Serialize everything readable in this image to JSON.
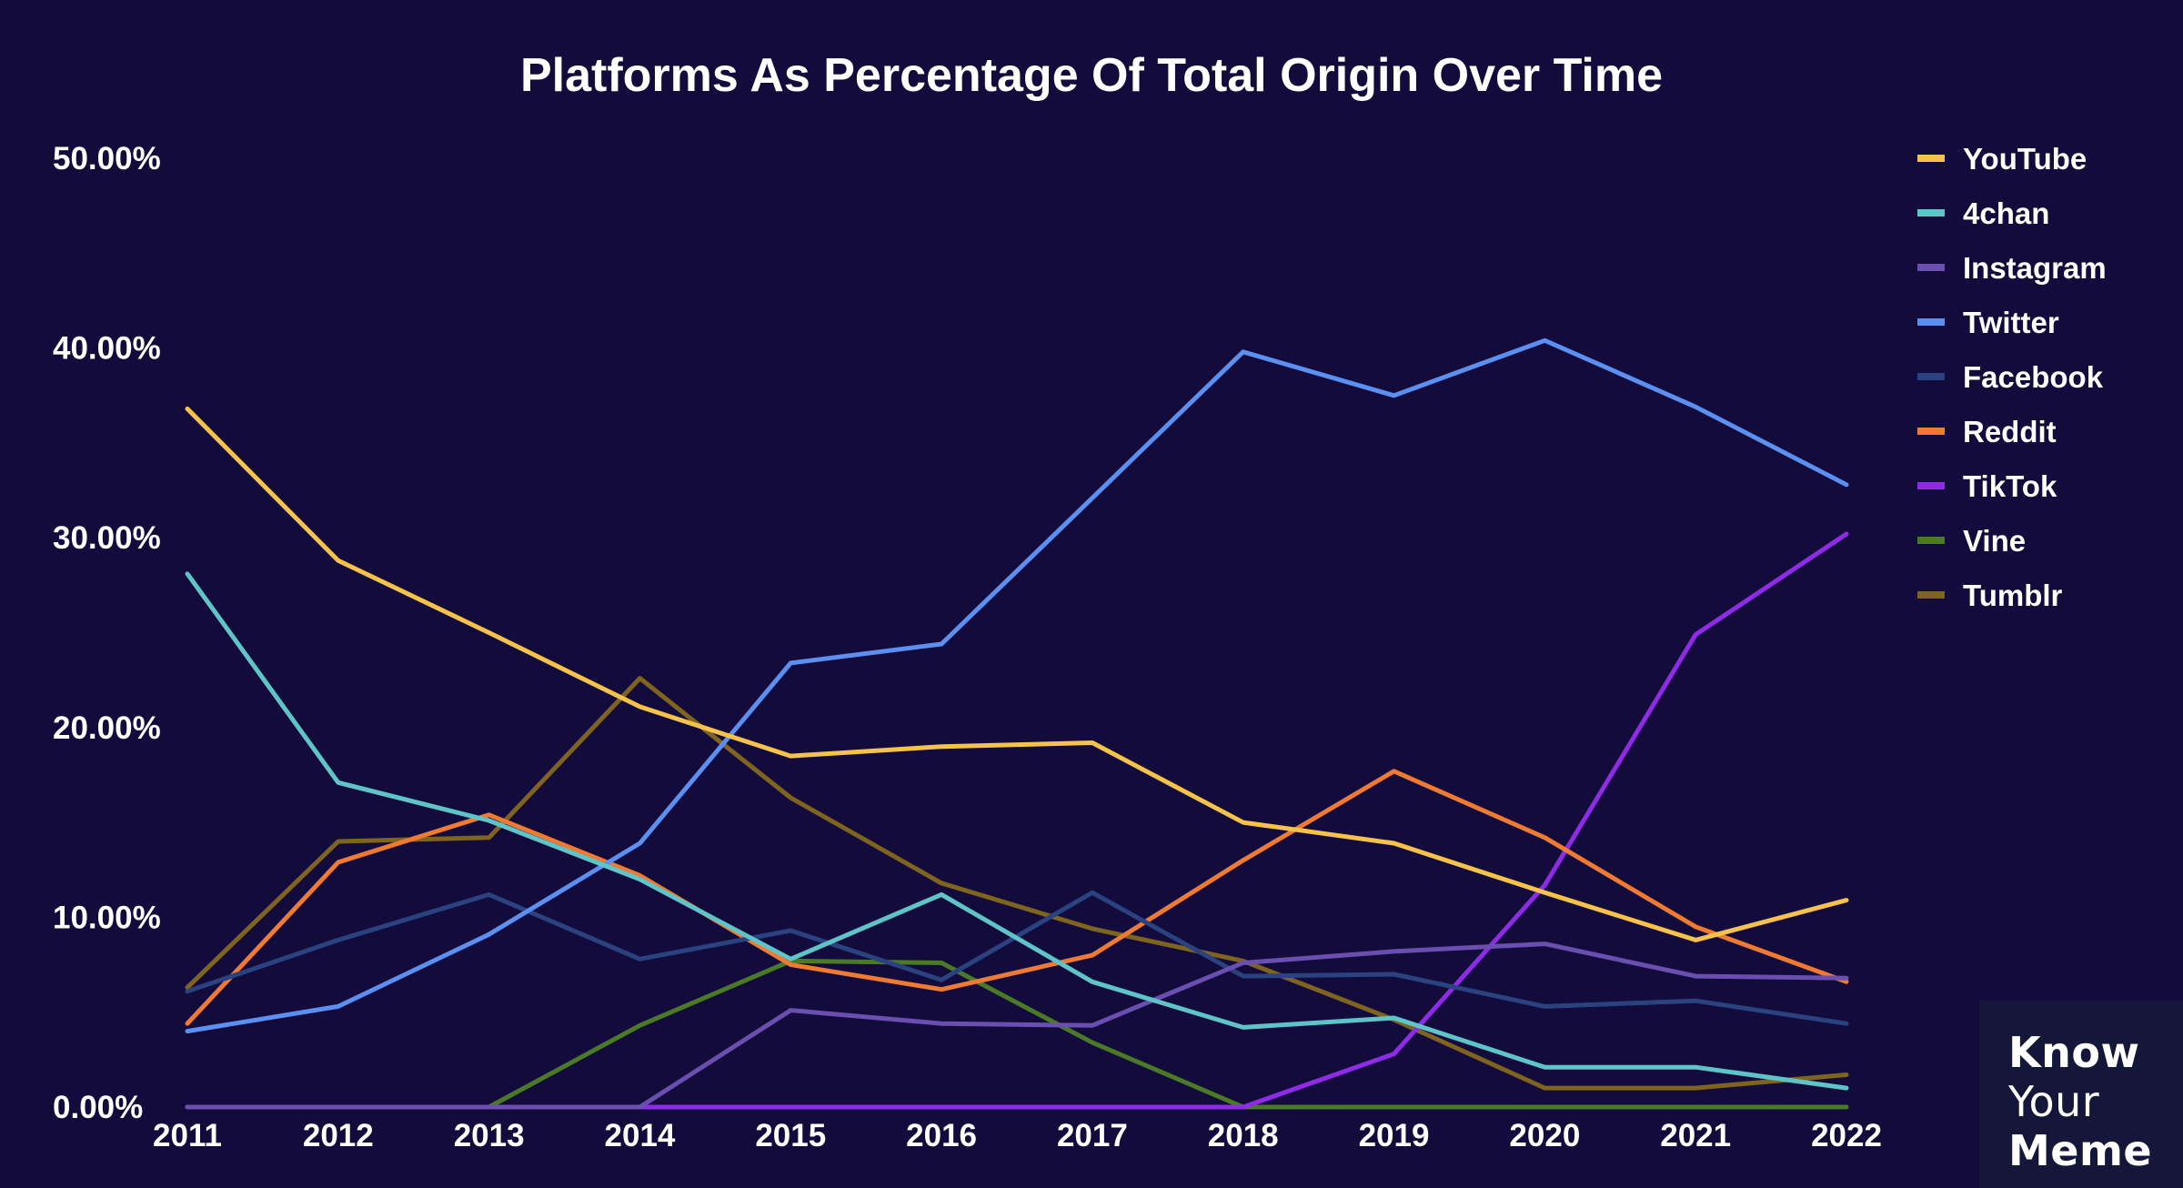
{
  "chart_data": {
    "type": "line",
    "title": "Platforms As Percentage Of Total Origin Over Time",
    "xlabel": "",
    "ylabel": "",
    "ylim": [
      0,
      50
    ],
    "yticks": [
      0,
      10,
      20,
      30,
      40,
      50
    ],
    "ytick_labels": [
      "0.00%",
      "10.00%",
      "20.00%",
      "30.00%",
      "40.00%",
      "50.00%"
    ],
    "categories": [
      "2011",
      "2012",
      "2013",
      "2014",
      "2015",
      "2016",
      "2017",
      "2018",
      "2019",
      "2020",
      "2021",
      "2022"
    ],
    "legend_position": "right",
    "series": [
      {
        "name": "YouTube",
        "color": "#f5c24c",
        "values": [
          36.8,
          28.8,
          25.0,
          21.1,
          18.5,
          19.0,
          19.2,
          15.0,
          13.9,
          11.3,
          8.8,
          10.9
        ]
      },
      {
        "name": "4chan",
        "color": "#5fc4c8",
        "values": [
          28.1,
          17.1,
          15.1,
          12.0,
          7.8,
          11.2,
          6.6,
          4.2,
          4.7,
          2.1,
          2.1,
          1.0
        ]
      },
      {
        "name": "Instagram",
        "color": "#6a4fb0",
        "values": [
          0.0,
          0.0,
          0.0,
          0.0,
          5.1,
          4.4,
          4.3,
          7.6,
          8.2,
          8.6,
          6.9,
          6.8
        ]
      },
      {
        "name": "Twitter",
        "color": "#5b8ff0",
        "values": [
          4.0,
          5.3,
          9.1,
          13.9,
          23.4,
          24.4,
          32.1,
          39.8,
          37.5,
          40.4,
          36.9,
          32.8
        ]
      },
      {
        "name": "Facebook",
        "color": "#2a4380",
        "values": [
          6.1,
          8.8,
          11.2,
          7.8,
          9.3,
          6.7,
          11.3,
          6.9,
          7.0,
          5.3,
          5.6,
          4.4
        ]
      },
      {
        "name": "Reddit",
        "color": "#ee7a33",
        "values": [
          4.4,
          12.9,
          15.4,
          12.2,
          7.5,
          6.2,
          8.0,
          13.0,
          17.7,
          14.2,
          9.5,
          6.6
        ]
      },
      {
        "name": "TikTok",
        "color": "#8f2be6",
        "values": [
          0.0,
          0.0,
          0.0,
          0.0,
          0.0,
          0.0,
          0.0,
          0.0,
          2.8,
          11.7,
          24.9,
          30.2
        ]
      },
      {
        "name": "Vine",
        "color": "#4a7a26",
        "values": [
          0.0,
          0.0,
          0.0,
          4.3,
          7.7,
          7.6,
          3.4,
          0.0,
          0.0,
          0.0,
          0.0,
          0.0
        ]
      },
      {
        "name": "Tumblr",
        "color": "#7f6420",
        "values": [
          6.3,
          14.0,
          14.2,
          22.6,
          16.3,
          11.8,
          9.4,
          7.7,
          4.6,
          1.0,
          1.0,
          1.7
        ]
      }
    ]
  },
  "watermark": {
    "words": [
      "Know",
      "Your",
      "Meme"
    ]
  }
}
